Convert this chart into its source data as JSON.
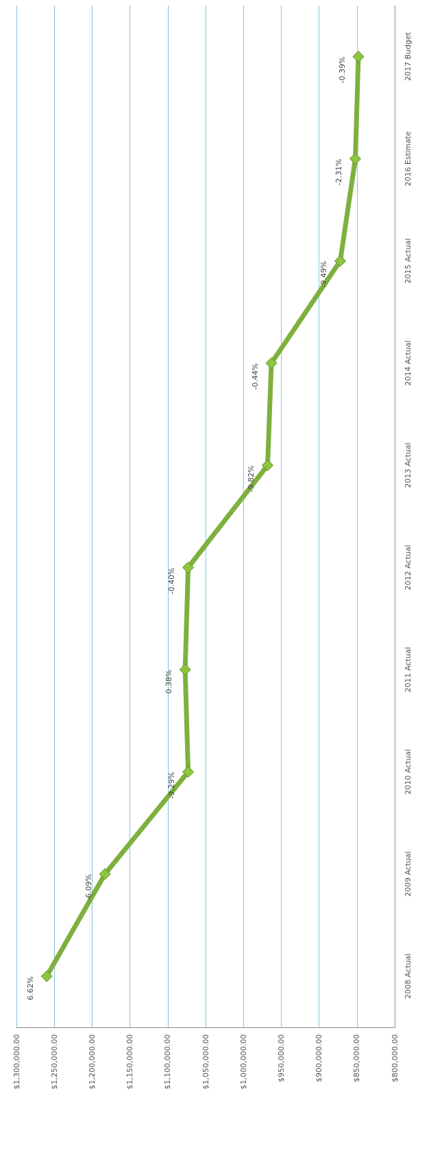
{
  "chart_data": {
    "type": "line",
    "orientation": "horizontal",
    "categories": [
      "2017 Budget",
      "2016 Estimate",
      "2015 Actual",
      "2014 Actual",
      "2013 Actual",
      "2012 Actual",
      "2011 Actual",
      "2010 Actual",
      "2009 Actual",
      "2008 Actual"
    ],
    "series": [
      {
        "color": "#7fb03f",
        "values": [
          848000,
          852000,
          872000,
          963000,
          968000,
          1073000,
          1077000,
          1073000,
          1183000,
          1260000
        ]
      }
    ],
    "annotations": [
      {
        "text": "-0.39%",
        "x": 848000,
        "y": "2017 Budget"
      },
      {
        "text": "-2.31%",
        "x": 852000,
        "y": "2016 Estimate"
      },
      {
        "text": "-9.49%",
        "x": 872000,
        "y": "2015 Actual"
      },
      {
        "text": "-0.44%",
        "x": 963000,
        "y": "2014 Actual"
      },
      {
        "text": "-9.82%",
        "x": 968000,
        "y": "2013 Actual"
      },
      {
        "text": "-0.40%",
        "x": 1073000,
        "y": "2012 Actual"
      },
      {
        "text": "0.38%",
        "x": 1077000,
        "y": "2011 Actual"
      },
      {
        "text": "-9.29%",
        "x": 1073000,
        "y": "2010 Actual"
      },
      {
        "text": "-6.09%",
        "x": 1183000,
        "y": "2009 Actual"
      },
      {
        "text": "6.62%",
        "x": 1260000,
        "y": "2008 Actual"
      }
    ],
    "xlim": [
      1300000,
      800000
    ],
    "xticks": [
      {
        "value": 1300000,
        "label": "$1,300,000.00"
      },
      {
        "value": 1250000,
        "label": "$1,250,000.00"
      },
      {
        "value": 1200000,
        "label": "$1,200,000.00"
      },
      {
        "value": 1150000,
        "label": "$1,150,000.00"
      },
      {
        "value": 1100000,
        "label": "$1,100,000.00"
      },
      {
        "value": 1050000,
        "label": "$1,050,000.00"
      },
      {
        "value": 1000000,
        "label": "$1,000,000.00"
      },
      {
        "value": 950000,
        "label": "$950,000.00"
      },
      {
        "value": 900000,
        "label": "$900,000.00"
      },
      {
        "value": 850000,
        "label": "$850,000.00"
      },
      {
        "value": 800000,
        "label": "$800,000.00"
      }
    ],
    "grid": "x",
    "marker": "diamond",
    "line_style": "solid"
  }
}
